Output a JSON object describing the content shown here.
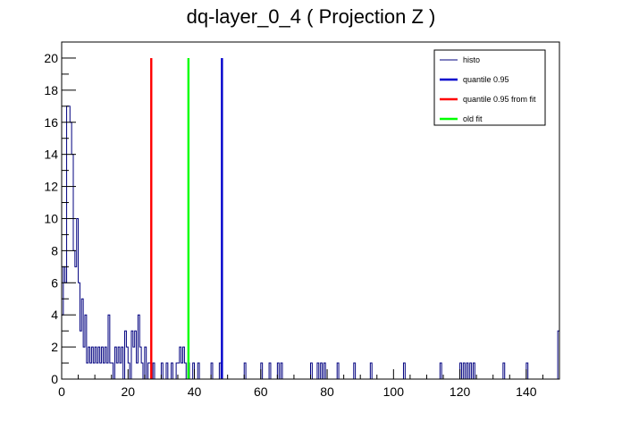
{
  "chart_data": {
    "type": "bar",
    "title": "dq-layer_0_4 ( Projection Z )",
    "xlabel": "",
    "ylabel": "",
    "xlim": [
      0,
      150
    ],
    "ylim": [
      0,
      21
    ],
    "x_ticks": [
      0,
      20,
      40,
      60,
      80,
      100,
      120,
      140
    ],
    "y_ticks": [
      0,
      2,
      4,
      6,
      8,
      10,
      12,
      14,
      16,
      18,
      20
    ],
    "grid": false,
    "legend_position": "top-right",
    "histogram": {
      "name": "histo",
      "color": "#00007f",
      "bin_width": 0.5,
      "bins": [
        [
          0.0,
          4
        ],
        [
          0.5,
          7
        ],
        [
          1.0,
          6
        ],
        [
          1.5,
          17
        ],
        [
          2.0,
          17
        ],
        [
          2.5,
          16
        ],
        [
          3.0,
          14
        ],
        [
          3.5,
          8
        ],
        [
          4.0,
          7
        ],
        [
          4.5,
          10
        ],
        [
          5.0,
          6
        ],
        [
          5.5,
          3
        ],
        [
          6.0,
          5
        ],
        [
          6.5,
          2
        ],
        [
          7.0,
          4
        ],
        [
          7.5,
          1
        ],
        [
          8.0,
          2
        ],
        [
          8.5,
          1
        ],
        [
          9.0,
          2
        ],
        [
          9.5,
          1
        ],
        [
          10.0,
          2
        ],
        [
          10.5,
          1
        ],
        [
          11.0,
          2
        ],
        [
          11.5,
          1
        ],
        [
          12.0,
          2
        ],
        [
          12.5,
          1
        ],
        [
          13.0,
          2
        ],
        [
          13.5,
          1
        ],
        [
          14.0,
          4
        ],
        [
          14.5,
          1
        ],
        [
          15.0,
          1
        ],
        [
          16.0,
          2
        ],
        [
          16.5,
          1
        ],
        [
          17.0,
          2
        ],
        [
          17.5,
          1
        ],
        [
          18.0,
          2
        ],
        [
          19.0,
          3
        ],
        [
          19.5,
          2
        ],
        [
          20.0,
          1
        ],
        [
          21.0,
          3
        ],
        [
          21.5,
          2
        ],
        [
          22.0,
          3
        ],
        [
          22.5,
          1
        ],
        [
          23.0,
          4
        ],
        [
          23.5,
          2
        ],
        [
          24.0,
          1
        ],
        [
          25.0,
          2
        ],
        [
          26.0,
          1
        ],
        [
          26.5,
          1
        ],
        [
          27.5,
          1
        ],
        [
          30.0,
          1
        ],
        [
          31.5,
          1
        ],
        [
          33.0,
          1
        ],
        [
          34.5,
          1
        ],
        [
          35.0,
          1
        ],
        [
          35.5,
          2
        ],
        [
          36.0,
          1
        ],
        [
          36.5,
          2
        ],
        [
          37.0,
          1
        ],
        [
          38.0,
          1
        ],
        [
          39.5,
          1
        ],
        [
          41.0,
          1
        ],
        [
          45.0,
          1
        ],
        [
          47.5,
          1
        ],
        [
          55.0,
          1
        ],
        [
          60.0,
          1
        ],
        [
          62.5,
          1
        ],
        [
          65.0,
          1
        ],
        [
          66.0,
          1
        ],
        [
          75.0,
          1
        ],
        [
          77.0,
          1
        ],
        [
          78.0,
          1
        ],
        [
          79.0,
          1
        ],
        [
          83.0,
          1
        ],
        [
          88.0,
          1
        ],
        [
          93.0,
          1
        ],
        [
          103.0,
          1
        ],
        [
          114.0,
          1
        ],
        [
          120.0,
          1
        ],
        [
          121.0,
          1
        ],
        [
          122.0,
          1
        ],
        [
          123.0,
          1
        ],
        [
          124.0,
          1
        ],
        [
          133.0,
          1
        ],
        [
          140.0,
          1
        ],
        [
          149.5,
          3
        ]
      ]
    },
    "vertical_lines": [
      {
        "name": "quantile 0.95",
        "x": 48.3,
        "y_top": 20,
        "color": "#0000cc"
      },
      {
        "name": "quantile 0.95 from fit",
        "x": 27.0,
        "y_top": 20,
        "color": "#ff0000"
      },
      {
        "name": "old fit",
        "x": 38.2,
        "y_top": 20,
        "color": "#00ff00"
      }
    ],
    "legend": [
      {
        "label": "histo",
        "color": "#00007f",
        "style": "thin"
      },
      {
        "label": "quantile 0.95",
        "color": "#0000cc",
        "style": "thick"
      },
      {
        "label": "quantile 0.95 from fit",
        "color": "#ff0000",
        "style": "thick"
      },
      {
        "label": "old fit",
        "color": "#00ff00",
        "style": "thick"
      }
    ]
  }
}
